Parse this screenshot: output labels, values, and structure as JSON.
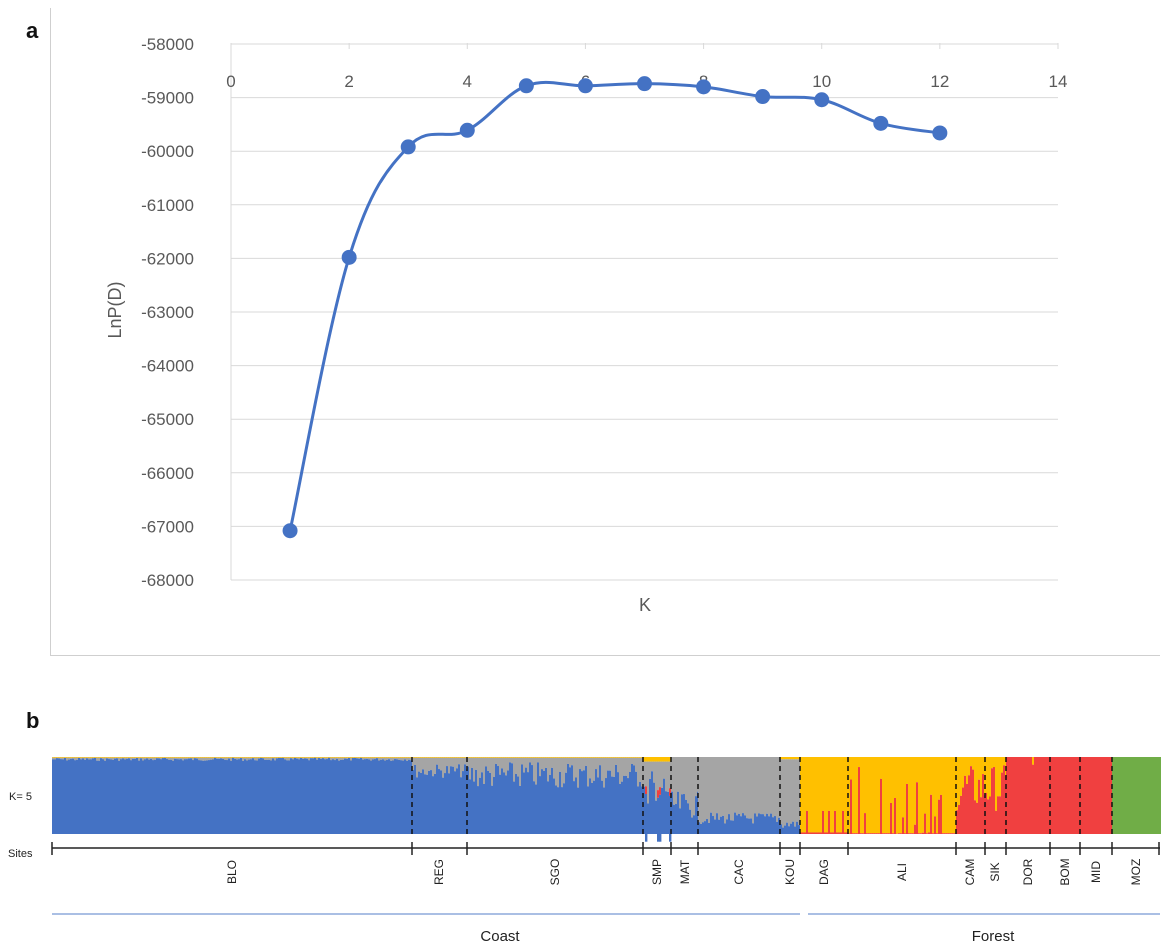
{
  "panel_a_label": "a",
  "panel_b_label": "b",
  "chart_data": [
    {
      "type": "line",
      "x": [
        1,
        2,
        3,
        4,
        5,
        6,
        7,
        8,
        9,
        10,
        11,
        12
      ],
      "y": [
        -67080,
        -61980,
        -59920,
        -59610,
        -58780,
        -58780,
        -58740,
        -58800,
        -58980,
        -59040,
        -59480,
        -59660
      ],
      "xlabel": "K",
      "ylabel": "LnP(D)",
      "xlim": [
        0,
        14
      ],
      "ylim": [
        -68000,
        -58000
      ],
      "xticks": [
        "0",
        "2",
        "4",
        "6",
        "8",
        "10",
        "12",
        "14"
      ],
      "yticks": [
        "-58000",
        "-59000",
        "-60000",
        "-61000",
        "-62000",
        "-63000",
        "-64000",
        "-65000",
        "-66000",
        "-67000",
        "-68000"
      ],
      "xaxis_position": "top",
      "grid": true,
      "line_color": "#4472c4",
      "marker": "circle"
    },
    {
      "type": "bar",
      "k_label": "K= 5",
      "row_label": "Sites",
      "sites": [
        "BLO",
        "REG",
        "SGO",
        "SMP",
        "MAT",
        "CAC",
        "KOU",
        "DAG",
        "ALI",
        "CAM",
        "SIK",
        "DOR",
        "BOM",
        "MID",
        "MOZ"
      ],
      "regions": [
        "Coast",
        "Forest"
      ],
      "colors": {
        "cluster1": "#4472c4",
        "cluster2": "#a5a5a5",
        "cluster3": "#ffc000",
        "cluster4": "#f04040",
        "cluster5": "#70ad47",
        "region_line": "#8eaadb"
      }
    }
  ]
}
